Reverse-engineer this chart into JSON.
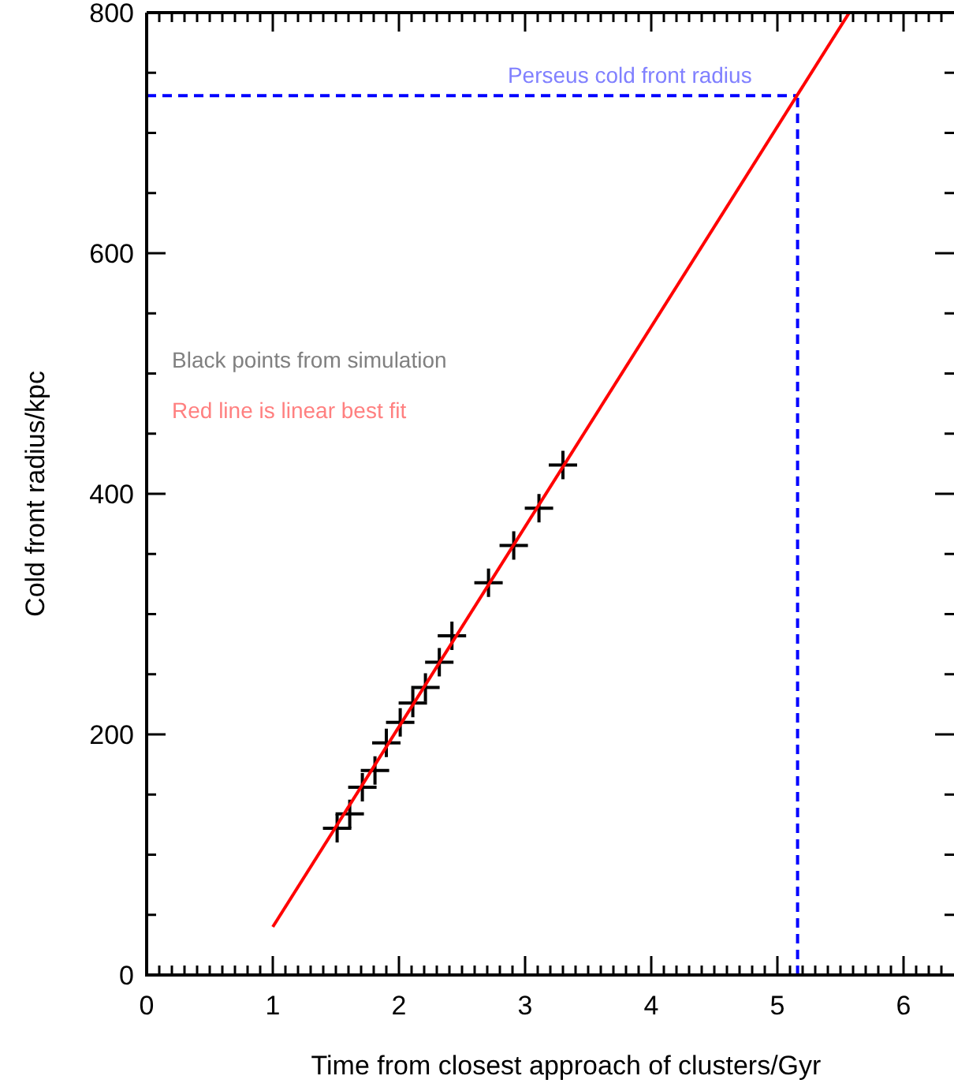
{
  "chart_data": {
    "type": "scatter",
    "xlabel": "Time from closest approach of clusters/Gyr",
    "ylabel": "Cold front radius/kpc",
    "xlim": [
      0,
      6.4
    ],
    "ylim": [
      0,
      800
    ],
    "xticks": [
      0,
      {
        "value": 0.1,
        "label": null
      },
      {
        "value": 0.2,
        "label": null
      },
      {
        "value": 0.3,
        "label": null
      },
      {
        "value": 0.4,
        "label": null
      },
      {
        "value": 0.5,
        "label": null
      },
      {
        "value": 0.6,
        "label": null
      },
      {
        "value": 0.7,
        "label": null
      },
      {
        "value": 0.8,
        "label": null
      },
      {
        "value": 0.9,
        "label": null
      },
      1,
      {
        "value": 1.1,
        "label": null
      },
      {
        "value": 1.2,
        "label": null
      },
      {
        "value": 1.3,
        "label": null
      },
      {
        "value": 1.4,
        "label": null
      },
      {
        "value": 1.5,
        "label": null
      },
      {
        "value": 1.6,
        "label": null
      },
      {
        "value": 1.7,
        "label": null
      },
      {
        "value": 1.8,
        "label": null
      },
      {
        "value": 1.9,
        "label": null
      },
      2,
      {
        "value": 2.1,
        "label": null
      },
      {
        "value": 2.2,
        "label": null
      },
      {
        "value": 2.3,
        "label": null
      },
      {
        "value": 2.4,
        "label": null
      },
      {
        "value": 2.5,
        "label": null
      },
      {
        "value": 2.6,
        "label": null
      },
      {
        "value": 2.7,
        "label": null
      },
      {
        "value": 2.8,
        "label": null
      },
      {
        "value": 2.9,
        "label": null
      },
      3,
      {
        "value": 3.1,
        "label": null
      },
      {
        "value": 3.2,
        "label": null
      },
      {
        "value": 3.3,
        "label": null
      },
      {
        "value": 3.4,
        "label": null
      },
      {
        "value": 3.5,
        "label": null
      },
      {
        "value": 3.6,
        "label": null
      },
      {
        "value": 3.7,
        "label": null
      },
      {
        "value": 3.8,
        "label": null
      },
      {
        "value": 3.9,
        "label": null
      },
      4,
      {
        "value": 4.1,
        "label": null
      },
      {
        "value": 4.2,
        "label": null
      },
      {
        "value": 4.3,
        "label": null
      },
      {
        "value": 4.4,
        "label": null
      },
      {
        "value": 4.5,
        "label": null
      },
      {
        "value": 4.6,
        "label": null
      },
      {
        "value": 4.7,
        "label": null
      },
      {
        "value": 4.8,
        "label": null
      },
      {
        "value": 4.9,
        "label": null
      },
      5,
      {
        "value": 5.1,
        "label": null
      },
      {
        "value": 5.2,
        "label": null
      },
      {
        "value": 5.3,
        "label": null
      },
      {
        "value": 5.4,
        "label": null
      },
      {
        "value": 5.5,
        "label": null
      },
      {
        "value": 5.6,
        "label": null
      },
      {
        "value": 5.7,
        "label": null
      },
      {
        "value": 5.8,
        "label": null
      },
      {
        "value": 5.9,
        "label": null
      },
      6,
      {
        "value": 6.1,
        "label": null
      },
      {
        "value": 6.2,
        "label": null
      },
      {
        "value": 6.3,
        "label": null
      }
    ],
    "yticks": [
      0,
      {
        "value": 50,
        "label": null
      },
      {
        "value": 100,
        "label": null
      },
      {
        "value": 150,
        "label": null
      },
      200,
      {
        "value": 250,
        "label": null
      },
      {
        "value": 300,
        "label": null
      },
      {
        "value": 350,
        "label": null
      },
      400,
      {
        "value": 450,
        "label": null
      },
      {
        "value": 500,
        "label": null
      },
      {
        "value": 550,
        "label": null
      },
      600,
      {
        "value": 650,
        "label": null
      },
      {
        "value": 700,
        "label": null
      },
      {
        "value": 750,
        "label": null
      },
      800
    ],
    "grid": false,
    "marker": "cross",
    "series": [
      {
        "color": "#000000",
        "x": [
          3.3,
          3.11,
          2.91,
          2.71,
          2.42,
          2.32,
          2.21,
          2.11,
          2.01,
          1.9,
          1.81,
          1.71,
          1.61,
          1.51
        ],
        "values": [
          424,
          388,
          357,
          326,
          282,
          260,
          239,
          226,
          210,
          193,
          170,
          156,
          134,
          122
        ]
      },
      {
        "type": "line",
        "color": "#ff0000",
        "marker": "none",
        "x": [
          1,
          5.57
        ],
        "values": [
          40,
          800
        ]
      }
    ],
    "ref_lines": [
      {
        "axis": "y",
        "value": 731,
        "label": "Perseus cold front radius",
        "color": "#0000ff",
        "line_style": "dashed"
      },
      {
        "axis": "x",
        "value": 5.16,
        "label": null,
        "color": "#0000ff",
        "line_style": "dashed"
      }
    ],
    "annotations": [
      "Black points from simulation",
      "Red line is linear best fit"
    ]
  }
}
